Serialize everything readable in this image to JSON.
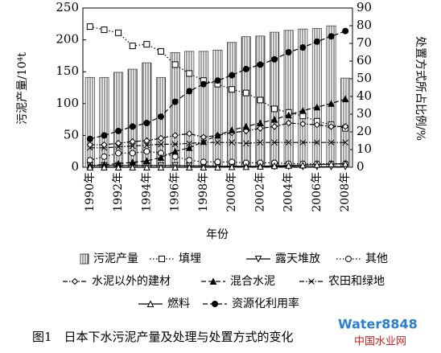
{
  "chart_data": {
    "type": "bar",
    "xlabel": "年份",
    "ylabel": "污泥产量/10⁴t",
    "y2label": "处置方式所占比例/%",
    "caption": "图1　日本下水污泥产量及处理与处置方式的变化",
    "watermark": "Water8848",
    "watermark_sub": "中国水业网",
    "categories": [
      "1990年",
      null,
      "1992年",
      null,
      "1994年",
      null,
      "1996年",
      null,
      "1998年",
      null,
      "2000年",
      null,
      "2002年",
      null,
      "2004年",
      null,
      "2006年",
      null,
      "2008年"
    ],
    "ylim": [
      0,
      250
    ],
    "yticks": [
      0,
      50,
      100,
      150,
      200,
      250
    ],
    "y2lim": [
      0,
      90
    ],
    "y2ticks": [
      0,
      10,
      20,
      30,
      40,
      50,
      60,
      70,
      80,
      90
    ],
    "series": [
      {
        "name": "污泥产量",
        "type": "bar",
        "color": "#444",
        "values": [
          141,
          141,
          149,
          154,
          164,
          141,
          180,
          182,
          182,
          184,
          196,
          205,
          206,
          212,
          215,
          217,
          218,
          222,
          140
        ]
      },
      {
        "name": "填埋",
        "type": "line",
        "axis": "y2",
        "marker": "square",
        "line_style": "dotted",
        "color": "#000",
        "values": [
          79.5,
          77.7,
          76,
          68.6,
          69.5,
          65.5,
          58,
          53,
          49,
          47,
          44,
          42,
          38,
          33,
          31,
          29,
          26,
          24,
          22
        ]
      },
      {
        "name": "露天堆放",
        "type": "line",
        "axis": "y2",
        "marker": "tri-down",
        "line_style": "solid",
        "color": "#000",
        "values": [
          1,
          1,
          1,
          1,
          1,
          1,
          1,
          0.8,
          0.8,
          0.6,
          0.6,
          0.5,
          0.5,
          0.4,
          0.4,
          0.3,
          0.3,
          0.3,
          0.3
        ]
      },
      {
        "name": "其他",
        "type": "line",
        "axis": "y2",
        "marker": "circle",
        "line_style": "dotted",
        "color": "#000",
        "values": [
          4,
          6,
          8,
          8,
          9,
          8,
          6,
          4,
          3,
          3,
          3,
          2.5,
          2.5,
          2.5,
          2,
          2,
          2,
          2,
          2
        ]
      },
      {
        "name": "水泥以外的建材",
        "type": "line",
        "axis": "y2",
        "marker": "diamond",
        "line_style": "dashdot",
        "color": "#000",
        "values": [
          12.7,
          12.7,
          13.6,
          14.5,
          15,
          16.4,
          18,
          19,
          17,
          18,
          19.5,
          20.5,
          22,
          23,
          25,
          24.5,
          24,
          23,
          23
        ]
      },
      {
        "name": "混合水泥",
        "type": "line",
        "axis": "y2",
        "marker": "tri-up-filled",
        "line_style": "dashed",
        "color": "#000",
        "values": [
          1,
          1.5,
          2,
          2.8,
          3.6,
          5.5,
          9,
          11,
          14.5,
          18,
          21,
          23,
          25,
          27,
          29.5,
          32,
          34,
          36,
          38.6
        ]
      },
      {
        "name": "农田和绿地",
        "type": "line",
        "axis": "y2",
        "marker": "cross",
        "line_style": "dashdot",
        "color": "#000",
        "values": [
          11,
          11,
          11.5,
          12,
          12.5,
          13,
          13,
          13.5,
          14,
          14,
          14,
          13.5,
          14,
          14,
          14,
          14,
          14,
          14,
          14
        ]
      },
      {
        "name": "燃料",
        "type": "line",
        "axis": "y2",
        "marker": "tri-up",
        "line_style": "solid",
        "color": "#000",
        "values": [
          0,
          0,
          0,
          0,
          0,
          0,
          0,
          0,
          0,
          0,
          0.2,
          0.3,
          0.5,
          0.8,
          1,
          1.2,
          1.5,
          1.8,
          2
        ]
      },
      {
        "name": "资源化利用率",
        "type": "line",
        "axis": "y2",
        "marker": "circle-filled",
        "line_style": "dashed",
        "color": "#000",
        "values": [
          16,
          18,
          20.5,
          23,
          25,
          28.6,
          37,
          43,
          47,
          49,
          52,
          55.5,
          58,
          61,
          65,
          67.7,
          71,
          74,
          77
        ]
      }
    ]
  }
}
